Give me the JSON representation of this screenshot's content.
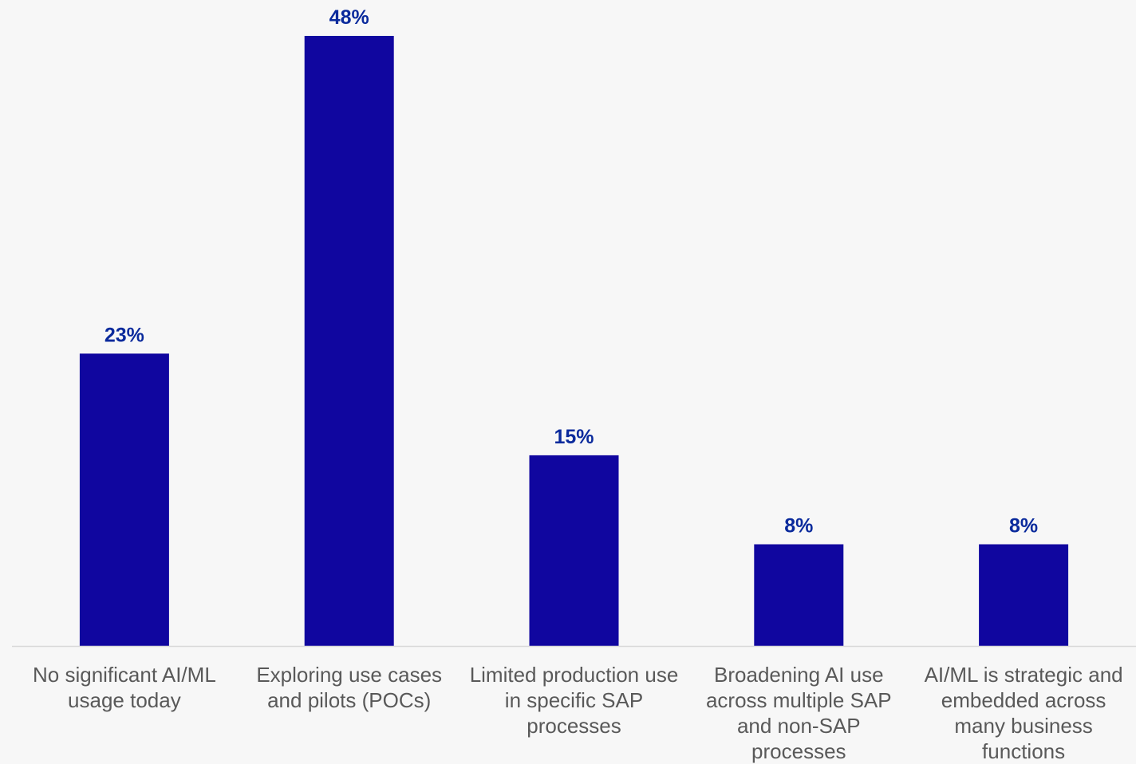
{
  "chart_data": {
    "type": "bar",
    "categories": [
      "No significant AI/ML usage today",
      "Exploring use cases and pilots (POCs)",
      "Limited production use in specific SAP processes",
      "Broadening AI use across multiple SAP and non-SAP processes",
      "AI/ML is strategic and embedded across many business functions"
    ],
    "values": [
      23,
      48,
      15,
      8,
      8
    ],
    "data_labels": [
      "23%",
      "48%",
      "15%",
      "8%",
      "8%"
    ],
    "title": "",
    "xlabel": "",
    "ylabel": "",
    "ylim": [
      0,
      48
    ],
    "grid": false,
    "legend": "none",
    "bar_color": "#10069f",
    "data_label_color": "#0a2a9c",
    "category_label_color": "#595959",
    "axis_color": "#d9d9d9",
    "background": "#f7f7f7"
  }
}
